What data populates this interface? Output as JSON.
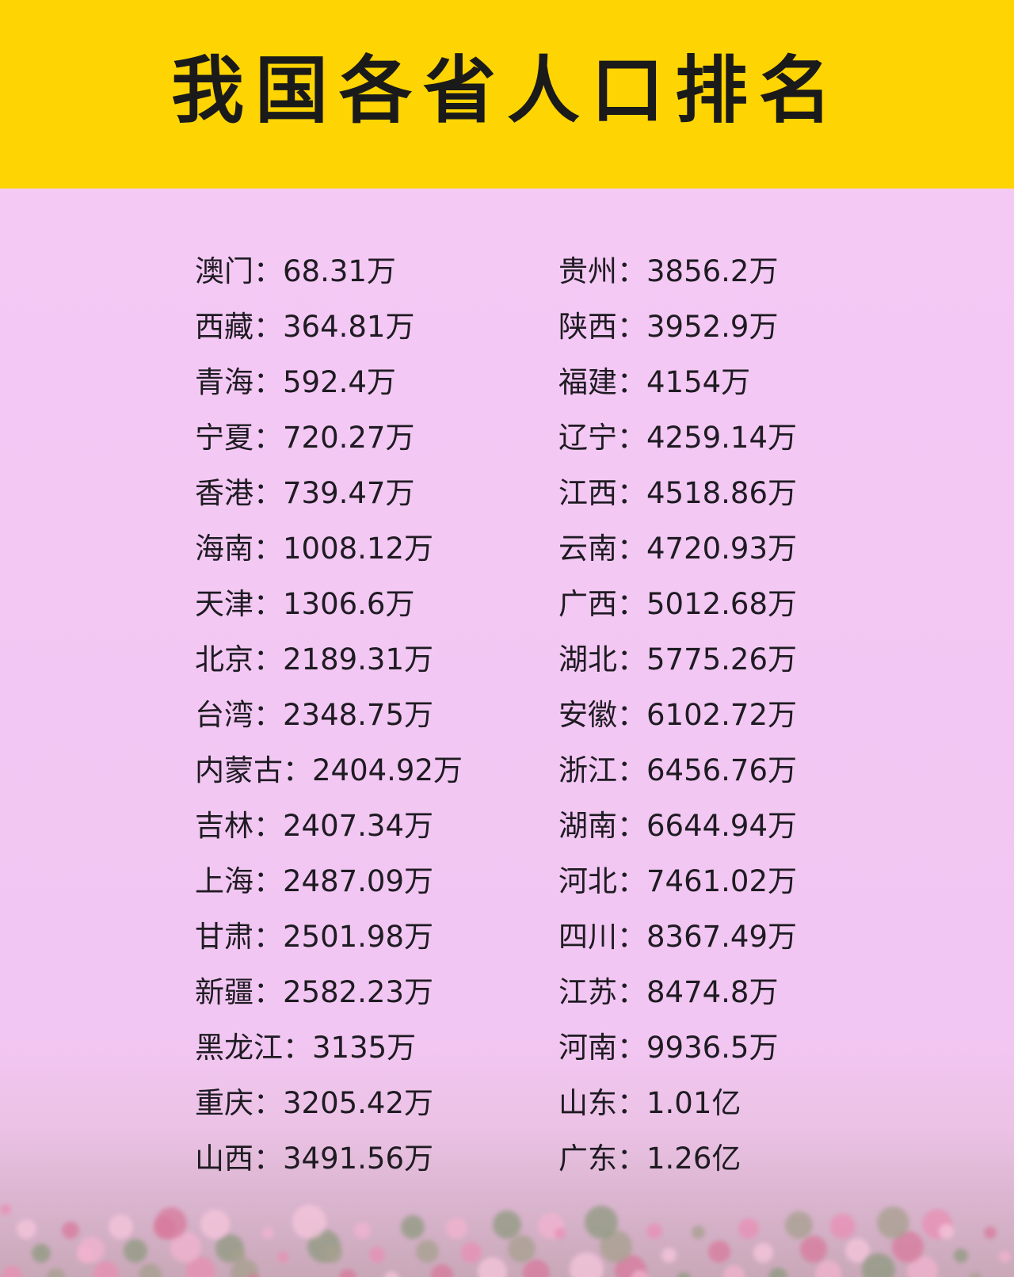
{
  "title": "我国各省人口排名",
  "left_column": [
    {
      "name": "澳门",
      "value": "68.31万"
    },
    {
      "name": "西藏",
      "value": "364.81万"
    },
    {
      "name": "青海",
      "value": "592.4万"
    },
    {
      "name": "宁夏",
      "value": "720.27万"
    },
    {
      "name": "香港",
      "value": "739.47万"
    },
    {
      "name": "海南",
      "value": "1008.12万"
    },
    {
      "name": "天津",
      "value": "1306.6万"
    },
    {
      "name": "北京",
      "value": "2189.31万"
    },
    {
      "name": "台湾",
      "value": "2348.75万"
    },
    {
      "name": "内蒙古",
      "value": "2404.92万"
    },
    {
      "name": "吉林",
      "value": "2407.34万"
    },
    {
      "name": "上海",
      "value": "2487.09万"
    },
    {
      "name": "甘肃",
      "value": "2501.98万"
    },
    {
      "name": "新疆",
      "value": "2582.23万"
    },
    {
      "name": "黑龙江",
      "value": "3135万"
    },
    {
      "name": "重庆",
      "value": "3205.42万"
    },
    {
      "name": "山西",
      "value": "3491.56万"
    }
  ],
  "right_column": [
    {
      "name": "贵州",
      "value": "3856.2万"
    },
    {
      "name": "陕西",
      "value": "3952.9万"
    },
    {
      "name": "福建",
      "value": "4154万"
    },
    {
      "name": "辽宁",
      "value": "4259.14万"
    },
    {
      "name": "江西",
      "value": "4518.86万"
    },
    {
      "name": "云南",
      "value": "4720.93万"
    },
    {
      "name": "广西",
      "value": "5012.68万"
    },
    {
      "name": "湖北",
      "value": "5775.26万"
    },
    {
      "name": "安徽",
      "value": "6102.72万"
    },
    {
      "name": "浙江",
      "value": "6456.76万"
    },
    {
      "name": "湖南",
      "value": "6644.94万"
    },
    {
      "name": "河北",
      "value": "7461.02万"
    },
    {
      "name": "四川",
      "value": "8367.49万"
    },
    {
      "name": "江苏",
      "value": "8474.8万"
    },
    {
      "name": "河南",
      "value": "9936.5万"
    },
    {
      "name": "山东",
      "value": "1.01亿"
    },
    {
      "name": "广东",
      "value": "1.26亿"
    }
  ],
  "separator": "：",
  "colors": {
    "banner": "#fed402",
    "background": "#f3c6f3",
    "text": "#1e1b22"
  }
}
